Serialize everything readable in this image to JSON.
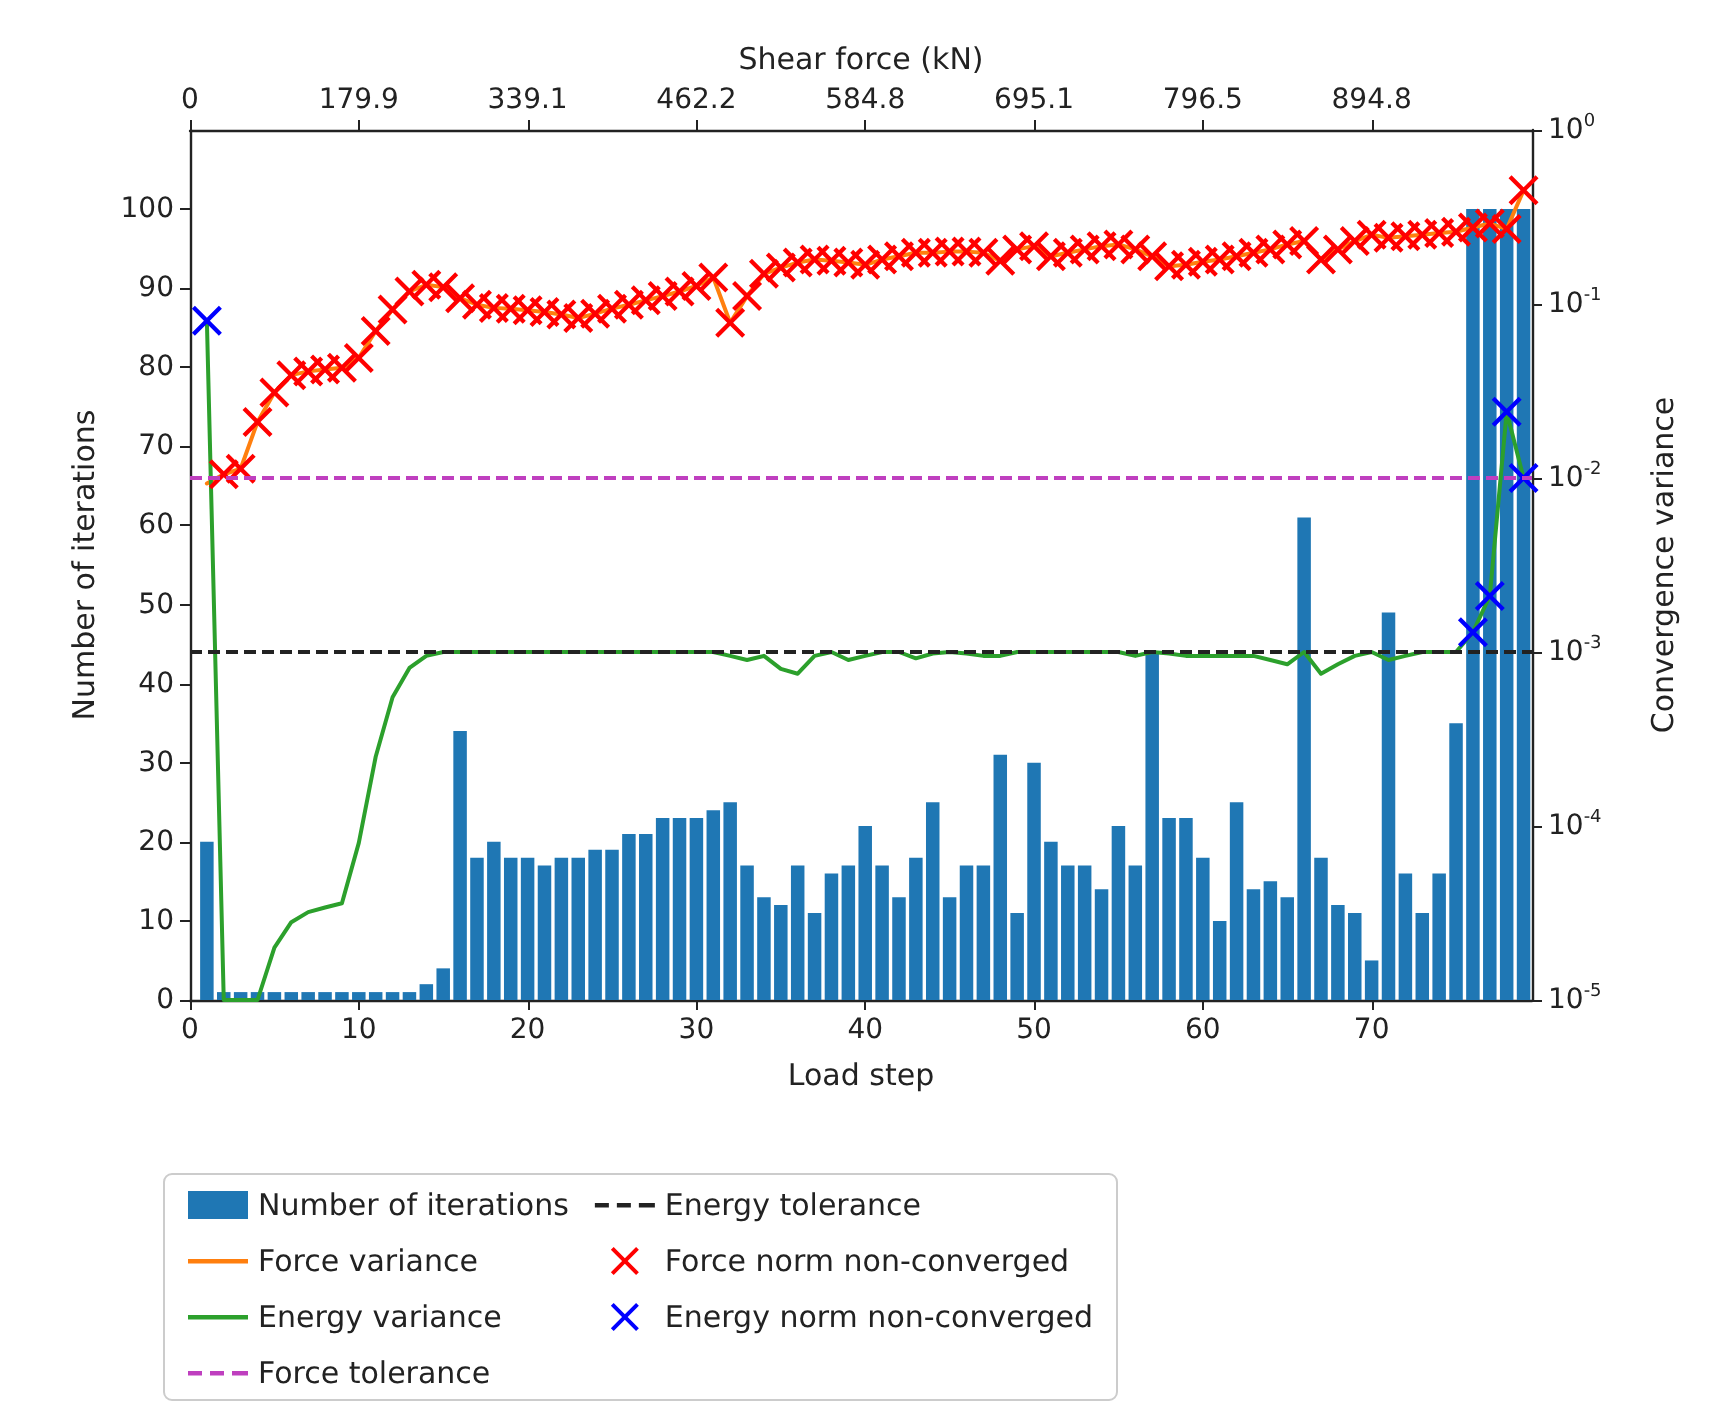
{
  "chart_data": {
    "type": "bar",
    "xlabel": "Load step",
    "ylabel": "Number of iterations",
    "y2label": "Convergence variance",
    "x": [
      1,
      2,
      3,
      4,
      5,
      6,
      7,
      8,
      9,
      10,
      11,
      12,
      13,
      14,
      15,
      16,
      17,
      18,
      19,
      20,
      21,
      22,
      23,
      24,
      25,
      26,
      27,
      28,
      29,
      30,
      31,
      32,
      33,
      34,
      35,
      36,
      37,
      38,
      39,
      40,
      41,
      42,
      43,
      44,
      45,
      46,
      47,
      48,
      49,
      50,
      51,
      52,
      53,
      54,
      55,
      56,
      57,
      58,
      59,
      60,
      61,
      62,
      63,
      64,
      65,
      66,
      67,
      68,
      69,
      70,
      71,
      72,
      73,
      74,
      75,
      76,
      77,
      78,
      79
    ],
    "series": [
      {
        "name": "Number of iterations",
        "color": "#1f77b4",
        "values": [
          20,
          1,
          1,
          1,
          1,
          1,
          1,
          1,
          1,
          1,
          1,
          1,
          1,
          2,
          4,
          34,
          18,
          20,
          18,
          18,
          17,
          18,
          18,
          19,
          19,
          21,
          21,
          23,
          23,
          23,
          24,
          25,
          17,
          13,
          12,
          17,
          11,
          16,
          17,
          22,
          17,
          13,
          18,
          25,
          13,
          17,
          17,
          31,
          11,
          30,
          20,
          17,
          17,
          14,
          22,
          17,
          44,
          23,
          23,
          18,
          10,
          25,
          14,
          15,
          13,
          61,
          18,
          12,
          11,
          5,
          49,
          16,
          11,
          16,
          35,
          100,
          100,
          100,
          100
        ]
      },
      {
        "name": "Force variance",
        "type": "line",
        "axis": "y2",
        "marker": "none",
        "color": "#ff7f0e",
        "values": [
          0.0093,
          0.0105,
          0.0113,
          0.021,
          0.031,
          0.039,
          0.041,
          0.042,
          0.043,
          0.049,
          0.07,
          0.093,
          0.118,
          0.129,
          0.125,
          0.108,
          0.099,
          0.095,
          0.094,
          0.092,
          0.09,
          0.087,
          0.083,
          0.088,
          0.094,
          0.099,
          0.105,
          0.111,
          0.118,
          0.127,
          0.142,
          0.078,
          0.111,
          0.149,
          0.162,
          0.173,
          0.18,
          0.177,
          0.173,
          0.168,
          0.18,
          0.188,
          0.197,
          0.197,
          0.2,
          0.2,
          0.197,
          0.177,
          0.206,
          0.215,
          0.188,
          0.197,
          0.206,
          0.215,
          0.22,
          0.206,
          0.188,
          0.165,
          0.168,
          0.175,
          0.18,
          0.188,
          0.197,
          0.206,
          0.22,
          0.23,
          0.18,
          0.206,
          0.23,
          0.25,
          0.24,
          0.245,
          0.25,
          0.256,
          0.26,
          0.275,
          0.29,
          0.27,
          0.45
        ]
      },
      {
        "name": "Energy variance",
        "type": "line",
        "axis": "y2",
        "marker": "none",
        "color": "#2ca02c",
        "values": [
          0.08,
          1e-05,
          1e-05,
          1e-05,
          2e-05,
          2.8e-05,
          3.2e-05,
          3.4e-05,
          3.6e-05,
          8e-05,
          0.00025,
          0.00055,
          0.00081,
          0.00095,
          0.001,
          0.001,
          0.001,
          0.001,
          0.001,
          0.001,
          0.001,
          0.001,
          0.001,
          0.001,
          0.001,
          0.001,
          0.001,
          0.001,
          0.001,
          0.001,
          0.001,
          0.00095,
          0.0009,
          0.00095,
          0.0008,
          0.00075,
          0.00095,
          0.001,
          0.0009,
          0.00095,
          0.001,
          0.001,
          0.00092,
          0.00098,
          0.001,
          0.00098,
          0.00095,
          0.00095,
          0.001,
          0.001,
          0.001,
          0.001,
          0.001,
          0.001,
          0.001,
          0.00095,
          0.001,
          0.00098,
          0.00095,
          0.00095,
          0.00095,
          0.00095,
          0.00095,
          0.0009,
          0.00085,
          0.001,
          0.00075,
          0.00085,
          0.00095,
          0.001,
          0.0009,
          0.00095,
          0.001,
          0.001,
          0.001,
          0.0013,
          0.0021,
          0.024,
          0.01
        ]
      },
      {
        "name": "Force norm non-converged",
        "type": "scatter",
        "axis": "y2",
        "marker": "cross",
        "color": "#ff0000",
        "x": [
          2,
          3,
          4,
          5,
          6,
          7,
          8,
          9,
          10,
          11,
          12,
          13,
          14,
          15,
          16,
          17,
          18,
          19,
          20,
          21,
          22,
          23,
          24,
          25,
          26,
          27,
          28,
          29,
          30,
          31,
          32,
          33,
          34,
          35,
          36,
          37,
          38,
          39,
          40,
          41,
          42,
          43,
          44,
          45,
          46,
          47,
          48,
          49,
          50,
          51,
          52,
          53,
          54,
          55,
          56,
          57,
          58,
          59,
          60,
          61,
          62,
          63,
          64,
          65,
          66,
          67,
          68,
          69,
          70,
          71,
          72,
          73,
          74,
          75,
          76,
          77,
          78,
          79
        ],
        "values": [
          0.0105,
          0.0113,
          0.021,
          0.031,
          0.039,
          0.041,
          0.042,
          0.043,
          0.049,
          0.07,
          0.093,
          0.118,
          0.129,
          0.125,
          0.108,
          0.099,
          0.095,
          0.094,
          0.092,
          0.09,
          0.087,
          0.083,
          0.088,
          0.094,
          0.099,
          0.105,
          0.111,
          0.118,
          0.127,
          0.142,
          0.078,
          0.111,
          0.149,
          0.162,
          0.173,
          0.18,
          0.177,
          0.173,
          0.168,
          0.18,
          0.188,
          0.197,
          0.197,
          0.2,
          0.2,
          0.197,
          0.177,
          0.206,
          0.215,
          0.188,
          0.197,
          0.206,
          0.215,
          0.22,
          0.206,
          0.188,
          0.165,
          0.168,
          0.175,
          0.18,
          0.188,
          0.197,
          0.206,
          0.22,
          0.23,
          0.18,
          0.206,
          0.23,
          0.25,
          0.24,
          0.245,
          0.25,
          0.256,
          0.26,
          0.275,
          0.29,
          0.27,
          0.45
        ]
      },
      {
        "name": "Energy norm non-converged",
        "type": "scatter",
        "axis": "y2",
        "marker": "cross",
        "color": "#0000ff",
        "x": [
          1,
          76,
          77,
          78,
          79
        ],
        "values": [
          0.08,
          0.0013,
          0.0021,
          0.024,
          0.01
        ]
      }
    ],
    "ref_lines": [
      {
        "axis": "y2",
        "value": 0.01,
        "label": "Force tolerance",
        "color": "#bf3fbf",
        "line_style": "dashed"
      },
      {
        "axis": "y2",
        "value": 0.001,
        "label": "Energy tolerance",
        "color": "#222222",
        "line_style": "dashed"
      }
    ],
    "xlim": [
      0,
      79.5
    ],
    "xticks": [
      0,
      10,
      20,
      30,
      40,
      50,
      60,
      70
    ],
    "annotations": [
      "Shear force (kN)",
      "0",
      {
        "text": "179.9",
        "x": 10
      },
      {
        "text": "339.1",
        "x": 20
      },
      {
        "text": "462.2",
        "x": 30
      },
      {
        "text": "584.8",
        "x": 40
      },
      {
        "text": "695.1",
        "x": 50
      },
      {
        "text": "796.5",
        "x": 60
      },
      {
        "text": "894.8",
        "x": 70
      }
    ],
    "ylim": [
      0,
      110
    ],
    "yticks": [
      0,
      10,
      20,
      30,
      40,
      50,
      60,
      70,
      80,
      90,
      100
    ],
    "y2lim": [
      1e-05,
      1
    ],
    "y2ticks": [
      {
        "value": 1e-05,
        "label": "10$^{-5}$"
      },
      {
        "value": 0.0001,
        "label": "10$^{-4}$"
      },
      {
        "value": 0.001,
        "label": "10$^{-3}$"
      },
      {
        "value": 0.01,
        "label": "10$^{-2}$"
      },
      {
        "value": 0.1,
        "label": "10$^{-1}$"
      },
      {
        "value": 1,
        "label": "10$^{0}$"
      }
    ],
    "log": "y2",
    "grid": false,
    "legend": "bottom"
  }
}
